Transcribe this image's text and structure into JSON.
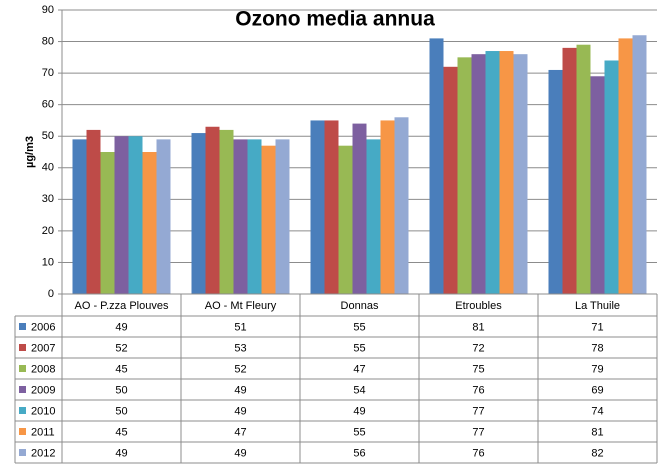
{
  "chart_data": {
    "type": "bar",
    "title": "Ozono media annua",
    "y_label": "µg/m3",
    "categories": [
      "AO - P.zza Plouves",
      "AO - Mt Fleury",
      "Donnas",
      "Etroubles",
      "La Thuile"
    ],
    "series": [
      {
        "name": "2006",
        "color": "#4a7ebb",
        "values": [
          49,
          51,
          55,
          81,
          71
        ]
      },
      {
        "name": "2007",
        "color": "#be4b48",
        "values": [
          52,
          53,
          55,
          72,
          78
        ]
      },
      {
        "name": "2008",
        "color": "#98b954",
        "values": [
          45,
          52,
          47,
          75,
          79
        ]
      },
      {
        "name": "2009",
        "color": "#7d60a0",
        "values": [
          50,
          49,
          54,
          76,
          69
        ]
      },
      {
        "name": "2010",
        "color": "#46aac5",
        "values": [
          50,
          49,
          49,
          77,
          74
        ]
      },
      {
        "name": "2011",
        "color": "#f79646",
        "values": [
          45,
          47,
          55,
          77,
          81
        ]
      },
      {
        "name": "2012",
        "color": "#94a9d3",
        "values": [
          49,
          49,
          56,
          76,
          82
        ]
      }
    ],
    "ylim": [
      0,
      90
    ],
    "yticks": [
      0,
      10,
      20,
      30,
      40,
      50,
      60,
      70,
      80,
      90
    ],
    "grid": true,
    "data_table": true
  }
}
